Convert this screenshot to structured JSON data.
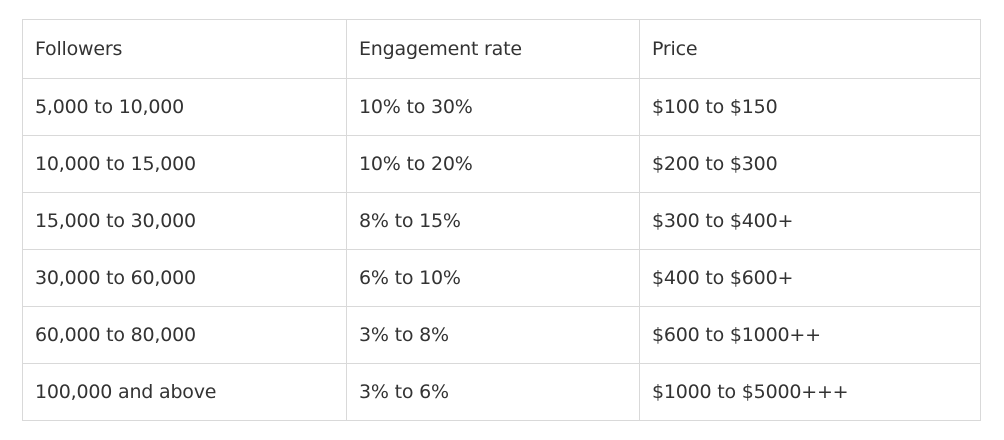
{
  "table": {
    "headers": [
      "Followers",
      "Engagement rate",
      "Price"
    ],
    "rows": [
      [
        "5,000 to 10,000",
        "10% to 30%",
        "$100 to $150"
      ],
      [
        "10,000 to 15,000",
        "10% to 20%",
        "$200 to $300"
      ],
      [
        "15,000 to 30,000",
        "8% to 15%",
        "$300 to $400+"
      ],
      [
        "30,000 to 60,000",
        "6% to 10%",
        "$400 to $600+"
      ],
      [
        "60,000 to 80,000",
        "3% to 8%",
        "$600 to $1000++"
      ],
      [
        "100,000 and above",
        "3% to 6%",
        "$1000 to $5000+++"
      ]
    ]
  }
}
